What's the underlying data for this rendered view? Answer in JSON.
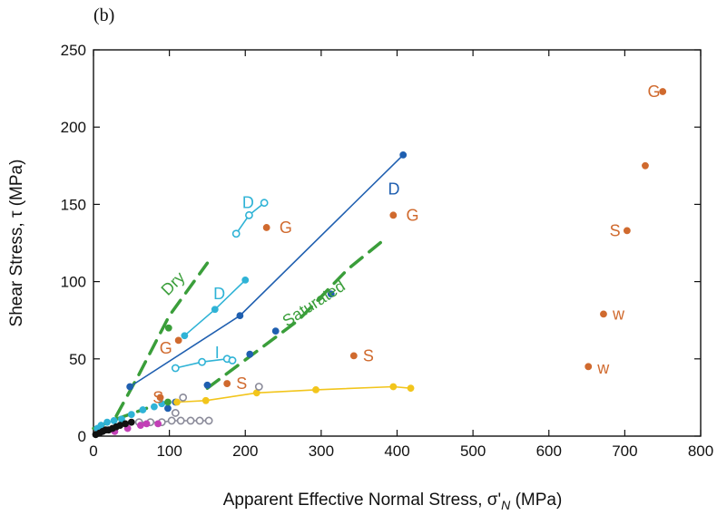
{
  "panel_label": "(b)",
  "colors": {
    "orange": "#d06a2e",
    "dark_blue": "#1f5fb0",
    "cyan": "#2fb3d6",
    "green": "#3a9e3a",
    "yellow": "#f2c51c",
    "gray": "#8a8a99",
    "magenta": "#c23fb6",
    "black": "#111111"
  },
  "chart_data": {
    "type": "scatter",
    "xlabel": "Apparent Effective Normal Stress, σ'",
    "xlabel_sub": "N",
    "xlabel_unit": "(MPa)",
    "ylabel": "Shear Stress, τ (MPa)",
    "xlim": [
      0,
      800
    ],
    "ylim": [
      0,
      250
    ],
    "xticks": [
      "0",
      "100",
      "200",
      "300",
      "400",
      "500",
      "600",
      "700",
      "800"
    ],
    "yticks": [
      "0",
      "50",
      "100",
      "150",
      "200",
      "250"
    ],
    "series": [
      {
        "color": "orange",
        "style": "points",
        "points": [
          [
            750,
            223
          ],
          [
            727,
            175
          ],
          [
            395,
            143
          ],
          [
            228,
            135
          ],
          [
            703,
            133
          ],
          [
            672,
            79
          ],
          [
            652,
            45
          ],
          [
            343,
            52
          ],
          [
            176,
            34
          ],
          [
            112,
            62
          ],
          [
            88,
            25
          ]
        ]
      },
      {
        "color": "dark_blue",
        "style": "line+points",
        "points": [
          [
            48,
            32
          ],
          [
            193,
            78
          ],
          [
            408,
            182
          ]
        ]
      },
      {
        "color": "dark_blue",
        "style": "points",
        "points": [
          [
            313,
            92
          ],
          [
            240,
            68
          ],
          [
            206,
            53
          ],
          [
            150,
            33
          ],
          [
            108,
            22
          ],
          [
            98,
            18
          ]
        ]
      },
      {
        "color": "cyan",
        "style": "line+open-points",
        "points": [
          [
            188,
            131
          ],
          [
            205,
            143
          ],
          [
            225,
            151
          ]
        ]
      },
      {
        "color": "cyan",
        "style": "line+points",
        "points": [
          [
            120,
            65
          ],
          [
            160,
            82
          ],
          [
            200,
            101
          ]
        ]
      },
      {
        "color": "cyan",
        "style": "line+open-points",
        "points": [
          [
            108,
            44
          ],
          [
            143,
            48
          ],
          [
            176,
            50
          ],
          [
            183,
            49
          ]
        ]
      },
      {
        "color": "cyan",
        "style": "points",
        "points": [
          [
            5,
            5
          ],
          [
            10,
            7
          ],
          [
            18,
            9
          ],
          [
            27,
            10
          ],
          [
            37,
            11
          ],
          [
            50,
            14
          ],
          [
            65,
            17
          ],
          [
            80,
            19
          ],
          [
            90,
            21
          ]
        ]
      },
      {
        "color": "yellow",
        "style": "line+points",
        "points": [
          [
            110,
            22
          ],
          [
            148,
            23
          ],
          [
            215,
            28
          ],
          [
            293,
            30
          ],
          [
            395,
            32
          ],
          [
            418,
            31
          ]
        ]
      },
      {
        "color": "gray",
        "style": "line+open-points",
        "points": [
          [
            60,
            9
          ],
          [
            75,
            9
          ],
          [
            90,
            9
          ],
          [
            103,
            10
          ],
          [
            115,
            10
          ],
          [
            128,
            10
          ],
          [
            140,
            10
          ],
          [
            152,
            10
          ]
        ]
      },
      {
        "color": "gray",
        "style": "open-points",
        "points": [
          [
            118,
            25
          ],
          [
            218,
            32
          ],
          [
            108,
            15
          ]
        ]
      },
      {
        "color": "green",
        "style": "points",
        "points": [
          [
            99,
            70
          ],
          [
            98,
            22
          ]
        ]
      },
      {
        "color": "magenta",
        "style": "points",
        "points": [
          [
            28,
            3
          ],
          [
            45,
            5
          ],
          [
            62,
            7
          ],
          [
            70,
            8
          ],
          [
            85,
            8
          ]
        ]
      },
      {
        "color": "black",
        "style": "points",
        "points": [
          [
            3,
            1
          ],
          [
            8,
            2
          ],
          [
            12,
            3
          ],
          [
            16,
            4
          ],
          [
            20,
            4
          ],
          [
            25,
            5
          ],
          [
            30,
            6
          ],
          [
            35,
            7
          ],
          [
            42,
            8
          ],
          [
            50,
            9
          ]
        ]
      }
    ],
    "dashed_trends": [
      {
        "color": "green",
        "points": [
          [
            30,
            13
          ],
          [
            60,
            40
          ],
          [
            100,
            78
          ],
          [
            150,
            112
          ]
        ]
      },
      {
        "color": "green",
        "points": [
          [
            150,
            31
          ],
          [
            270,
            75
          ],
          [
            335,
            108
          ],
          [
            385,
            128
          ]
        ]
      },
      {
        "color": "green",
        "points": [
          [
            0,
            5
          ],
          [
            30,
            11
          ],
          [
            70,
            18
          ]
        ]
      }
    ],
    "annotations": [
      {
        "text": "G",
        "x": 730,
        "y": 223,
        "color": "orange"
      },
      {
        "text": "G",
        "x": 412,
        "y": 143,
        "color": "orange"
      },
      {
        "text": "G",
        "x": 245,
        "y": 135,
        "color": "orange"
      },
      {
        "text": "G",
        "x": 87,
        "y": 57,
        "color": "orange"
      },
      {
        "text": "S",
        "x": 680,
        "y": 133,
        "color": "orange"
      },
      {
        "text": "S",
        "x": 355,
        "y": 52,
        "color": "orange"
      },
      {
        "text": "S",
        "x": 188,
        "y": 34,
        "color": "orange"
      },
      {
        "text": "S",
        "x": 78,
        "y": 25,
        "color": "orange"
      },
      {
        "text": "w",
        "x": 684,
        "y": 79,
        "color": "orange"
      },
      {
        "text": "w",
        "x": 664,
        "y": 44,
        "color": "orange"
      },
      {
        "text": "D",
        "x": 388,
        "y": 160,
        "color": "dark_blue"
      },
      {
        "text": "D",
        "x": 196,
        "y": 151,
        "color": "cyan"
      },
      {
        "text": "D",
        "x": 158,
        "y": 92,
        "color": "cyan"
      },
      {
        "text": "I",
        "x": 160,
        "y": 54,
        "color": "cyan"
      },
      {
        "text": "Dry",
        "x": 98,
        "y": 94,
        "color": "green",
        "rotate": -45
      },
      {
        "text": "Saturated",
        "x": 255,
        "y": 74,
        "color": "green",
        "rotate": -33
      }
    ]
  }
}
